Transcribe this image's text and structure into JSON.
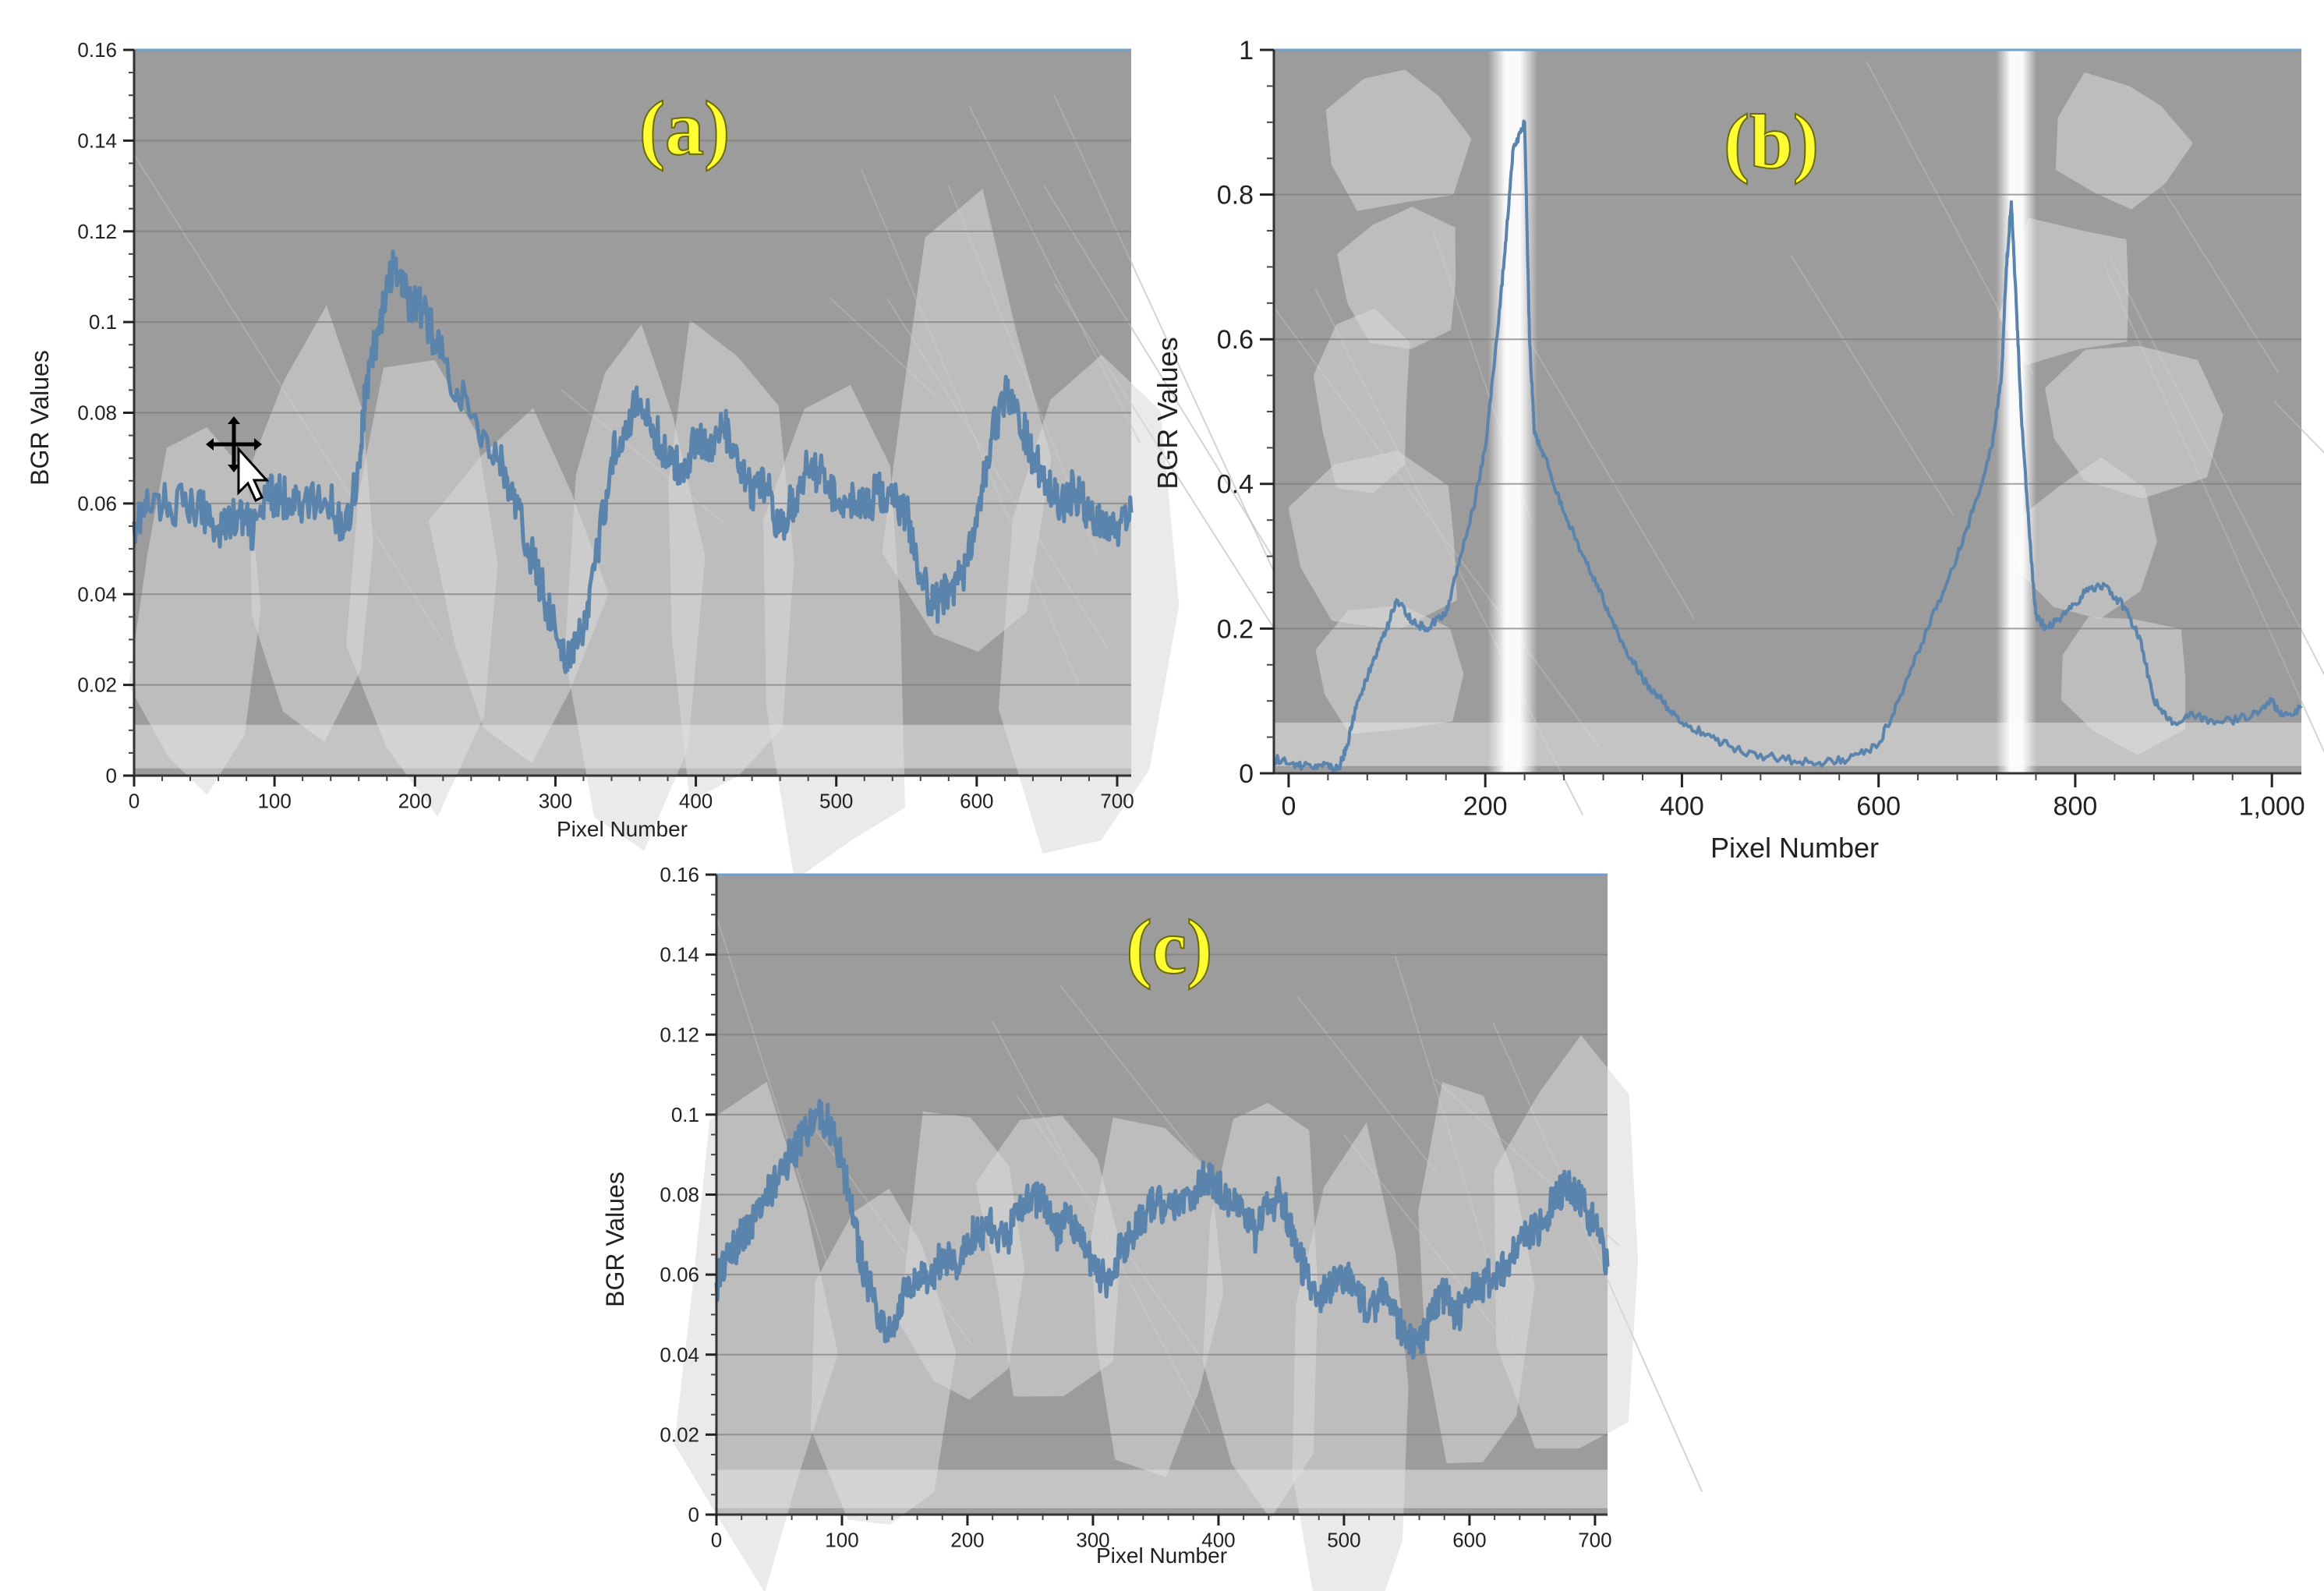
{
  "figure": {
    "background": "#ffffff"
  },
  "colors": {
    "plot_bg": "#9c9c9c",
    "flake": "#d8d8d8",
    "line": "#5b84ad",
    "panel_label": "#ffff33",
    "frame": "#6f9fcf"
  },
  "chart_data": [
    {
      "id": "a",
      "type": "line",
      "panel_label": "(a)",
      "xlabel": "Pixel Number",
      "ylabel": "BGR Values",
      "xlim": [
        0,
        710
      ],
      "ylim": [
        0,
        0.16
      ],
      "xticks": [
        0,
        100,
        200,
        300,
        400,
        500,
        600,
        700
      ],
      "xtick_labels": [
        "0",
        "100",
        "200",
        "300",
        "400",
        "500",
        "600",
        "700"
      ],
      "yticks": [
        0,
        0.02,
        0.04,
        0.06,
        0.08,
        0.1,
        0.12,
        0.14,
        0.16
      ],
      "ytick_labels": [
        "0",
        "0.02",
        "0.04",
        "0.06",
        "0.08",
        "0.1",
        "0.12",
        "0.14",
        "0.16"
      ],
      "grid": "horizontal",
      "background": "SEM micrograph of tool surface with adhered flakes",
      "series": [
        {
          "x": [
            0,
            10,
            25,
            45,
            60,
            75,
            85,
            95,
            100,
            110,
            120,
            140,
            150,
            160,
            165,
            175,
            185,
            195,
            205,
            220,
            240,
            260,
            270,
            280,
            290,
            300,
            310,
            320,
            330,
            340,
            350,
            360,
            370,
            380,
            390,
            400,
            410,
            420,
            430,
            440,
            450,
            460,
            470,
            480,
            490,
            500,
            510,
            520,
            530,
            540,
            550,
            560,
            570,
            580,
            590,
            600,
            610,
            620,
            630,
            640,
            650,
            660,
            670,
            680,
            690,
            700,
            710
          ],
          "y": [
            0.056,
            0.059,
            0.06,
            0.059,
            0.055,
            0.057,
            0.054,
            0.061,
            0.062,
            0.061,
            0.06,
            0.06,
            0.054,
            0.068,
            0.085,
            0.1,
            0.112,
            0.105,
            0.103,
            0.092,
            0.079,
            0.07,
            0.061,
            0.051,
            0.042,
            0.032,
            0.025,
            0.032,
            0.049,
            0.07,
            0.078,
            0.082,
            0.076,
            0.07,
            0.067,
            0.075,
            0.072,
            0.077,
            0.068,
            0.062,
            0.064,
            0.054,
            0.061,
            0.068,
            0.067,
            0.06,
            0.062,
            0.058,
            0.063,
            0.06,
            0.058,
            0.044,
            0.037,
            0.041,
            0.045,
            0.055,
            0.074,
            0.084,
            0.079,
            0.071,
            0.065,
            0.06,
            0.063,
            0.058,
            0.056,
            0.055,
            0.058
          ]
        }
      ]
    },
    {
      "id": "b",
      "type": "line",
      "panel_label": "(b)",
      "xlabel": "Pixel Number",
      "ylabel": "BGR Values",
      "xlim": [
        -15,
        1030
      ],
      "ylim": [
        0,
        1
      ],
      "xticks": [
        0,
        200,
        400,
        600,
        800,
        1000
      ],
      "xtick_labels": [
        "0",
        "200",
        "400",
        "600",
        "800",
        "1,000"
      ],
      "yticks": [
        0,
        0.2,
        0.4,
        0.6,
        0.8,
        1
      ],
      "ytick_labels": [
        "0",
        "0.2",
        "0.4",
        "0.6",
        "0.8",
        "1"
      ],
      "grid": "horizontal",
      "background": "SEM micrograph with two bright vertical scratch bands",
      "series": [
        {
          "x": [
            -15,
            10,
            30,
            50,
            60,
            70,
            85,
            100,
            110,
            125,
            140,
            160,
            175,
            190,
            200,
            210,
            220,
            228,
            240,
            245,
            250,
            260,
            280,
            300,
            320,
            340,
            360,
            380,
            400,
            430,
            460,
            500,
            540,
            570,
            600,
            620,
            650,
            680,
            700,
            715,
            725,
            730,
            735,
            740,
            745,
            755,
            760,
            770,
            790,
            810,
            830,
            850,
            865,
            880,
            900,
            920,
            950,
            980,
            1000,
            1010,
            1030
          ],
          "y": [
            0.02,
            0.01,
            0.012,
            0.005,
            0.04,
            0.1,
            0.15,
            0.2,
            0.24,
            0.21,
            0.2,
            0.22,
            0.3,
            0.38,
            0.45,
            0.58,
            0.72,
            0.86,
            0.9,
            0.6,
            0.47,
            0.44,
            0.36,
            0.3,
            0.24,
            0.18,
            0.13,
            0.1,
            0.07,
            0.05,
            0.03,
            0.02,
            0.015,
            0.02,
            0.04,
            0.1,
            0.2,
            0.3,
            0.38,
            0.45,
            0.55,
            0.7,
            0.79,
            0.65,
            0.5,
            0.3,
            0.22,
            0.2,
            0.22,
            0.25,
            0.26,
            0.23,
            0.19,
            0.1,
            0.07,
            0.08,
            0.07,
            0.08,
            0.1,
            0.08,
            0.09
          ]
        }
      ]
    },
    {
      "id": "c",
      "type": "line",
      "panel_label": "(c)",
      "xlabel": "Pixel Number",
      "ylabel": "BGR Values",
      "xlim": [
        0,
        710
      ],
      "ylim": [
        0,
        0.16
      ],
      "xticks": [
        0,
        100,
        200,
        300,
        400,
        500,
        600,
        700
      ],
      "xtick_labels": [
        "0",
        "100",
        "200",
        "300",
        "400",
        "500",
        "600",
        "700"
      ],
      "yticks": [
        0,
        0.02,
        0.04,
        0.06,
        0.08,
        0.1,
        0.12,
        0.14,
        0.16
      ],
      "ytick_labels": [
        "0",
        "0.02",
        "0.04",
        "0.06",
        "0.08",
        "0.1",
        "0.12",
        "0.14",
        "0.16"
      ],
      "grid": "horizontal",
      "background": "SEM micrograph of tool surface with adhered flakes",
      "series": [
        {
          "x": [
            0,
            10,
            20,
            30,
            40,
            50,
            60,
            70,
            80,
            90,
            100,
            110,
            120,
            130,
            140,
            150,
            160,
            170,
            180,
            190,
            200,
            210,
            220,
            230,
            240,
            250,
            260,
            270,
            280,
            290,
            300,
            310,
            320,
            330,
            340,
            350,
            360,
            370,
            380,
            390,
            400,
            410,
            420,
            430,
            440,
            450,
            460,
            470,
            480,
            490,
            500,
            510,
            520,
            530,
            540,
            550,
            560,
            570,
            580,
            590,
            600,
            610,
            620,
            630,
            640,
            650,
            660,
            670,
            680,
            690,
            700,
            710
          ],
          "y": [
            0.058,
            0.064,
            0.07,
            0.074,
            0.08,
            0.085,
            0.09,
            0.095,
            0.1,
            0.098,
            0.088,
            0.072,
            0.058,
            0.05,
            0.045,
            0.055,
            0.06,
            0.058,
            0.065,
            0.062,
            0.07,
            0.07,
            0.072,
            0.068,
            0.075,
            0.08,
            0.078,
            0.07,
            0.075,
            0.068,
            0.062,
            0.058,
            0.065,
            0.07,
            0.074,
            0.078,
            0.077,
            0.078,
            0.08,
            0.085,
            0.082,
            0.078,
            0.075,
            0.07,
            0.077,
            0.08,
            0.068,
            0.06,
            0.055,
            0.058,
            0.06,
            0.055,
            0.05,
            0.055,
            0.05,
            0.045,
            0.042,
            0.05,
            0.055,
            0.05,
            0.055,
            0.058,
            0.06,
            0.062,
            0.068,
            0.07,
            0.074,
            0.08,
            0.082,
            0.078,
            0.072,
            0.062
          ]
        }
      ]
    }
  ]
}
